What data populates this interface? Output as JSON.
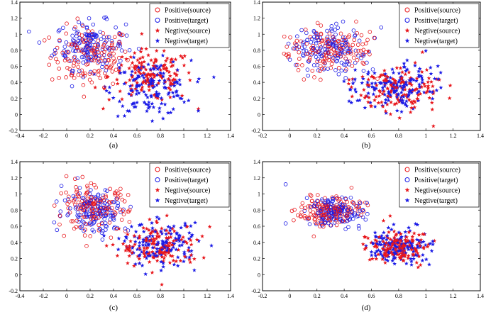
{
  "colors": {
    "source": "#e8161b",
    "target": "#1a1ae6",
    "axis": "#000000"
  },
  "legend": {
    "entries": [
      {
        "label": "Positive(source)",
        "marker": "circle",
        "color": "#e8161b"
      },
      {
        "label": "Positive(target)",
        "marker": "circle",
        "color": "#1a1ae6"
      },
      {
        "label": "Negtive(source)",
        "marker": "star",
        "color": "#e8161b"
      },
      {
        "label": "Negtive(target)",
        "marker": "star",
        "color": "#1a1ae6"
      }
    ],
    "placement": "top-right"
  },
  "chart_data": [
    {
      "type": "scatter",
      "caption": "(a)",
      "xlim": [
        -0.4,
        1.4
      ],
      "ylim": [
        -0.2,
        1.4
      ],
      "xticks": [
        "-0.4",
        "-0.2",
        "0",
        "0.2",
        "0.4",
        "0.6",
        "0.8",
        "1",
        "1.2",
        "1.4"
      ],
      "yticks": [
        "-0.2",
        "0",
        "0.2",
        "0.4",
        "0.6",
        "0.8",
        "1",
        "1.2",
        "1.4"
      ],
      "clusters": [
        {
          "series": "Positive(source)",
          "center": [
            0.2,
            0.72
          ],
          "spread": [
            0.17,
            0.19
          ],
          "count": 150
        },
        {
          "series": "Positive(target)",
          "center": [
            0.2,
            0.86
          ],
          "spread": [
            0.15,
            0.15
          ],
          "count": 150
        },
        {
          "series": "Negtive(source)",
          "center": [
            0.72,
            0.48
          ],
          "spread": [
            0.18,
            0.16
          ],
          "count": 150
        },
        {
          "series": "Negtive(target)",
          "center": [
            0.72,
            0.33
          ],
          "spread": [
            0.17,
            0.17
          ],
          "count": 150
        }
      ],
      "annotations": []
    },
    {
      "type": "scatter",
      "caption": "(b)",
      "xlim": [
        -0.2,
        1.4
      ],
      "ylim": [
        -0.2,
        1.4
      ],
      "xticks": [
        "-0.2",
        "0",
        "0.2",
        "0.4",
        "0.6",
        "0.8",
        "1",
        "1.2",
        "1.4"
      ],
      "yticks": [
        "-0.2",
        "0",
        "0.2",
        "0.4",
        "0.6",
        "0.8",
        "1",
        "1.2",
        "1.4"
      ],
      "clusters": [
        {
          "series": "Positive(source)",
          "center": [
            0.28,
            0.8
          ],
          "spread": [
            0.16,
            0.15
          ],
          "count": 150
        },
        {
          "series": "Positive(target)",
          "center": [
            0.3,
            0.8
          ],
          "spread": [
            0.15,
            0.15
          ],
          "count": 150
        },
        {
          "series": "Negtive(source)",
          "center": [
            0.78,
            0.32
          ],
          "spread": [
            0.16,
            0.14
          ],
          "count": 150
        },
        {
          "series": "Negtive(target)",
          "center": [
            0.8,
            0.35
          ],
          "spread": [
            0.15,
            0.13
          ],
          "count": 150
        }
      ],
      "annotations": []
    },
    {
      "type": "scatter",
      "caption": "(c)",
      "xlim": [
        -0.4,
        1.4
      ],
      "ylim": [
        -0.2,
        1.4
      ],
      "xticks": [
        "-0.4",
        "-0.2",
        "0",
        "0.2",
        "0.4",
        "0.6",
        "0.8",
        "1",
        "1.2",
        "1.4"
      ],
      "yticks": [
        "-0.2",
        "0",
        "0.2",
        "0.4",
        "0.6",
        "0.8",
        "1",
        "1.2",
        "1.4"
      ],
      "clusters": [
        {
          "series": "Positive(source)",
          "center": [
            0.22,
            0.82
          ],
          "spread": [
            0.15,
            0.14
          ],
          "count": 150
        },
        {
          "series": "Positive(target)",
          "center": [
            0.25,
            0.8
          ],
          "spread": [
            0.14,
            0.14
          ],
          "count": 150
        },
        {
          "series": "Negtive(source)",
          "center": [
            0.8,
            0.35
          ],
          "spread": [
            0.17,
            0.14
          ],
          "count": 150
        },
        {
          "series": "Negtive(target)",
          "center": [
            0.8,
            0.37
          ],
          "spread": [
            0.16,
            0.13
          ],
          "count": 150
        }
      ],
      "annotations": []
    },
    {
      "type": "scatter",
      "caption": "(d)",
      "xlim": [
        -0.2,
        1.4
      ],
      "ylim": [
        -0.2,
        1.4
      ],
      "xticks": [
        "-0.2",
        "0",
        "0.2",
        "0.4",
        "0.6",
        "0.8",
        "1",
        "1.2",
        "1.4"
      ],
      "yticks": [
        "-0.2",
        "0",
        "0.2",
        "0.4",
        "0.6",
        "0.8",
        "1",
        "1.2",
        "1.4"
      ],
      "clusters": [
        {
          "series": "Positive(source)",
          "center": [
            0.3,
            0.78
          ],
          "spread": [
            0.11,
            0.09
          ],
          "count": 150
        },
        {
          "series": "Positive(target)",
          "center": [
            0.31,
            0.79
          ],
          "spread": [
            0.11,
            0.09
          ],
          "count": 150
        },
        {
          "series": "Negtive(source)",
          "center": [
            0.8,
            0.35
          ],
          "spread": [
            0.11,
            0.1
          ],
          "count": 150
        },
        {
          "series": "Negtive(target)",
          "center": [
            0.8,
            0.35
          ],
          "spread": [
            0.11,
            0.1
          ],
          "count": 150
        }
      ],
      "annotations": [
        {
          "series": "Positive(target)",
          "x": -0.03,
          "y": 1.12
        }
      ]
    }
  ]
}
